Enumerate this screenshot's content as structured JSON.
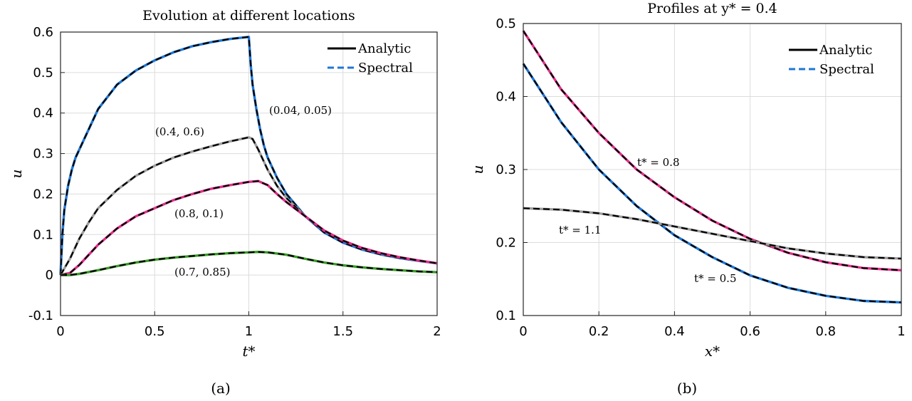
{
  "chart_data": [
    {
      "type": "line",
      "panel_label": "(a)",
      "title": "Evolution at different locations",
      "xlabel": "t*",
      "ylabel": "u",
      "xlim": [
        0,
        2
      ],
      "ylim": [
        -0.1,
        0.6
      ],
      "x_ticks": [
        0,
        0.5,
        1,
        1.5,
        2
      ],
      "x_tick_labels": [
        "0",
        "0.5",
        "1",
        "1.5",
        "2"
      ],
      "y_ticks": [
        -0.1,
        0,
        0.1,
        0.2,
        0.3,
        0.4,
        0.5,
        0.6
      ],
      "y_tick_labels": [
        "-0.1",
        "0",
        "0.1",
        "0.2",
        "0.3",
        "0.4",
        "0.5",
        "0.6"
      ],
      "grid": true,
      "legend": {
        "placement": "top-right",
        "entries": [
          {
            "label": "Analytic",
            "color": "#000000",
            "style": "solid"
          },
          {
            "label": "Spectral",
            "color": "#1f77d4",
            "style": "dashed"
          }
        ]
      },
      "series": [
        {
          "label": "(0.04, 0.05)",
          "color": "#1f77d4",
          "x": [
            0,
            0.01,
            0.02,
            0.04,
            0.06,
            0.08,
            0.1,
            0.15,
            0.2,
            0.25,
            0.3,
            0.4,
            0.5,
            0.6,
            0.7,
            0.8,
            0.9,
            1.0,
            1.01,
            1.02,
            1.04,
            1.06,
            1.08,
            1.1,
            1.15,
            1.2,
            1.3,
            1.4,
            1.5,
            1.6,
            1.7,
            1.8,
            1.9,
            2.0
          ],
          "y": [
            0,
            0.1,
            0.16,
            0.22,
            0.26,
            0.29,
            0.31,
            0.36,
            0.41,
            0.44,
            0.47,
            0.505,
            0.53,
            0.55,
            0.565,
            0.575,
            0.583,
            0.588,
            0.52,
            0.47,
            0.41,
            0.36,
            0.32,
            0.29,
            0.24,
            0.2,
            0.145,
            0.105,
            0.08,
            0.063,
            0.051,
            0.042,
            0.035,
            0.029
          ]
        },
        {
          "label": "(0.4, 0.6)",
          "color": "#9e9e9e",
          "x": [
            0,
            0.05,
            0.1,
            0.15,
            0.2,
            0.3,
            0.4,
            0.5,
            0.6,
            0.7,
            0.8,
            0.9,
            1.0,
            1.02,
            1.05,
            1.1,
            1.15,
            1.2,
            1.3,
            1.4,
            1.5,
            1.6,
            1.7,
            1.8,
            1.9,
            2.0
          ],
          "y": [
            0,
            0.04,
            0.09,
            0.13,
            0.165,
            0.21,
            0.245,
            0.27,
            0.29,
            0.305,
            0.318,
            0.33,
            0.34,
            0.336,
            0.31,
            0.26,
            0.22,
            0.19,
            0.145,
            0.11,
            0.085,
            0.067,
            0.054,
            0.044,
            0.036,
            0.029
          ]
        },
        {
          "label": "(0.8, 0.1)",
          "color": "#e0308a",
          "x": [
            0,
            0.05,
            0.1,
            0.15,
            0.2,
            0.3,
            0.4,
            0.5,
            0.6,
            0.7,
            0.8,
            0.9,
            1.0,
            1.05,
            1.1,
            1.15,
            1.2,
            1.3,
            1.4,
            1.5,
            1.6,
            1.7,
            1.8,
            1.9,
            2.0
          ],
          "y": [
            0,
            0.005,
            0.025,
            0.05,
            0.075,
            0.115,
            0.145,
            0.165,
            0.185,
            0.2,
            0.213,
            0.222,
            0.23,
            0.232,
            0.222,
            0.2,
            0.18,
            0.145,
            0.11,
            0.085,
            0.067,
            0.054,
            0.044,
            0.036,
            0.029
          ]
        },
        {
          "label": "(0.7, 0.85)",
          "color": "#3a9a2a",
          "x": [
            0,
            0.05,
            0.1,
            0.2,
            0.3,
            0.4,
            0.5,
            0.6,
            0.7,
            0.8,
            0.9,
            1.0,
            1.05,
            1.1,
            1.2,
            1.3,
            1.4,
            1.5,
            1.6,
            1.7,
            1.8,
            1.9,
            2.0
          ],
          "y": [
            0,
            0.0,
            0.003,
            0.012,
            0.022,
            0.031,
            0.038,
            0.043,
            0.047,
            0.051,
            0.054,
            0.056,
            0.057,
            0.056,
            0.05,
            0.04,
            0.031,
            0.024,
            0.019,
            0.015,
            0.012,
            0.009,
            0.007
          ]
        }
      ]
    },
    {
      "type": "line",
      "panel_label": "(b)",
      "title": "Profiles at y* = 0.4",
      "xlabel": "x*",
      "ylabel": "u",
      "xlim": [
        0,
        1
      ],
      "ylim": [
        0.1,
        0.5
      ],
      "x_ticks": [
        0,
        0.2,
        0.4,
        0.6,
        0.8,
        1
      ],
      "x_tick_labels": [
        "0",
        "0.2",
        "0.4",
        "0.6",
        "0.8",
        "1"
      ],
      "y_ticks": [
        0.1,
        0.2,
        0.3,
        0.4,
        0.5
      ],
      "y_tick_labels": [
        "0.1",
        "0.2",
        "0.3",
        "0.4",
        "0.5"
      ],
      "grid": true,
      "legend": {
        "placement": "top-right",
        "entries": [
          {
            "label": "Analytic",
            "color": "#000000",
            "style": "solid"
          },
          {
            "label": "Spectral",
            "color": "#1f77d4",
            "style": "dashed"
          }
        ]
      },
      "series": [
        {
          "label": "t* = 0.8",
          "color": "#e0308a",
          "x": [
            0,
            0.1,
            0.2,
            0.3,
            0.4,
            0.5,
            0.6,
            0.7,
            0.8,
            0.9,
            1.0
          ],
          "y": [
            0.49,
            0.41,
            0.35,
            0.3,
            0.262,
            0.23,
            0.205,
            0.186,
            0.173,
            0.165,
            0.162
          ]
        },
        {
          "label": "t* = 0.5",
          "color": "#1f77d4",
          "x": [
            0,
            0.1,
            0.2,
            0.3,
            0.4,
            0.5,
            0.6,
            0.7,
            0.8,
            0.9,
            1.0
          ],
          "y": [
            0.445,
            0.365,
            0.3,
            0.25,
            0.21,
            0.18,
            0.155,
            0.138,
            0.127,
            0.12,
            0.118
          ]
        },
        {
          "label": "t* = 1.1",
          "color": "#9e9e9e",
          "x": [
            0,
            0.1,
            0.2,
            0.3,
            0.4,
            0.5,
            0.6,
            0.7,
            0.8,
            0.9,
            1.0
          ],
          "y": [
            0.247,
            0.245,
            0.24,
            0.232,
            0.222,
            0.212,
            0.202,
            0.192,
            0.185,
            0.18,
            0.178
          ]
        }
      ]
    }
  ]
}
